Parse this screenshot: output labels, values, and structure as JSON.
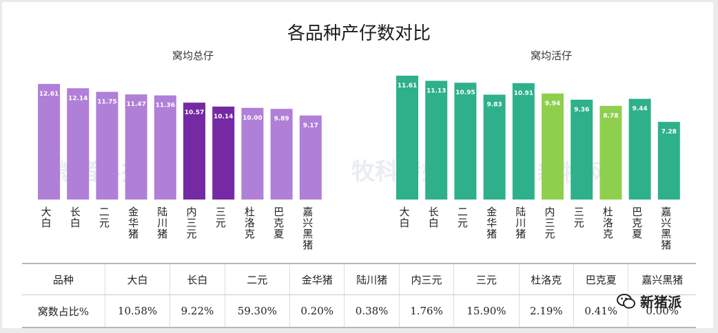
{
  "title": "各品种产仔数对比",
  "colors": {
    "left_bar": "#b07fd8",
    "left_highlight": "#7529a3",
    "right_bar": "#2eb08b",
    "right_highlight": "#8fcf4e",
    "label_color": "#ffffff"
  },
  "watermarks": [
    "微猪科技",
    "牧科传媒",
    "新牧网"
  ],
  "logo_text": "新猪派",
  "chart_data": [
    {
      "type": "bar",
      "title": "窝均总仔",
      "categories": [
        "大白",
        "长白",
        "二元",
        "金华猪",
        "陆川猪",
        "内三元",
        "三元",
        "杜洛克",
        "巴克夏",
        "嘉兴黑猪"
      ],
      "category_labels": [
        "大白",
        "长白",
        "二元",
        "金华猪",
        "陆川猪",
        "内三元",
        "三元",
        "杜洛克",
        "巴克夏",
        "嘉兴黑猪"
      ],
      "values": [
        12.61,
        12.14,
        11.75,
        11.47,
        11.36,
        10.57,
        10.14,
        10.0,
        9.89,
        9.17
      ],
      "value_labels": [
        "12.61",
        "12.14",
        "11.75",
        "11.47",
        "11.36",
        "10.57",
        "10.14",
        "10.00",
        "9.89",
        "9.17"
      ],
      "highlight": [
        5,
        6
      ],
      "ylim": [
        0,
        13.5
      ],
      "grid": false,
      "xlabel": "",
      "ylabel": ""
    },
    {
      "type": "bar",
      "title": "窝均活仔",
      "categories": [
        "大白",
        "长白",
        "二元",
        "金华猪",
        "陆川猪",
        "内三元",
        "三元",
        "杜洛克",
        "巴克夏",
        "嘉兴黑猪"
      ],
      "category_labels": [
        "大白",
        "长白",
        "二元",
        "金华猪",
        "陆川猪",
        "内三元",
        "三元",
        "杜洛克",
        "巴克夏",
        "嘉兴黑猪"
      ],
      "values": [
        11.61,
        11.13,
        10.95,
        9.83,
        10.91,
        9.94,
        9.36,
        8.78,
        9.44,
        7.28
      ],
      "value_labels": [
        "11.61",
        "11.13",
        "10.95",
        "9.83",
        "10.91",
        "9.94",
        "9.36",
        "8.78",
        "9.44",
        "7.28"
      ],
      "highlight": [
        5,
        7
      ],
      "ylim": [
        0,
        12.5
      ],
      "grid": false,
      "xlabel": "",
      "ylabel": ""
    }
  ],
  "table": {
    "headers": [
      "品种",
      "大白",
      "长白",
      "二元",
      "金华猪",
      "陆川猪",
      "内三元",
      "三元",
      "杜洛克",
      "巴克夏",
      "嘉兴黑猪"
    ],
    "row": [
      "窝数占比%",
      "10.58%",
      "9.22%",
      "59.30%",
      "0.20%",
      "0.38%",
      "1.76%",
      "15.90%",
      "2.19%",
      "0.41%",
      "0.00%"
    ]
  }
}
